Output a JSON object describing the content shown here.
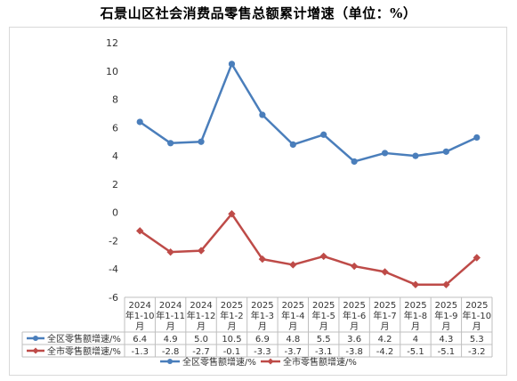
{
  "title": "石景山区社会消费品零售总额累计增速（单位：%）",
  "chart_data": {
    "type": "line",
    "categories": [
      [
        "2024",
        "年1-10",
        "月"
      ],
      [
        "2024",
        "年1-11",
        "月"
      ],
      [
        "2024",
        "年1-12",
        "月"
      ],
      [
        "2025",
        "年1-2",
        "月"
      ],
      [
        "2025",
        "年1-3",
        "月"
      ],
      [
        "2025",
        "年1-4",
        "月"
      ],
      [
        "2025",
        "年1-5",
        "月"
      ],
      [
        "2025",
        "年1-6",
        "月"
      ],
      [
        "2025",
        "年1-7",
        "月"
      ],
      [
        "2025",
        "年1-8",
        "月"
      ],
      [
        "2025",
        "年1-9",
        "月"
      ],
      [
        "2025",
        "年1-10",
        "月"
      ]
    ],
    "series": [
      {
        "name": "全区零售额增速/%",
        "color": "#4a7ebb",
        "marker": "circle",
        "values": [
          6.4,
          4.9,
          5.0,
          10.5,
          6.9,
          4.8,
          5.5,
          3.6,
          4.2,
          4,
          4.3,
          5.3
        ],
        "labels": [
          "6.4",
          "4.9",
          "5.0",
          "10.5",
          "6.9",
          "4.8",
          "5.5",
          "3.6",
          "4.2",
          "4",
          "4.3",
          "5.3"
        ]
      },
      {
        "name": "全市零售额增速/%",
        "color": "#be4b48",
        "marker": "diamond",
        "values": [
          -1.3,
          -2.8,
          -2.7,
          -0.1,
          -3.3,
          -3.7,
          -3.1,
          -3.8,
          -4.2,
          -5.1,
          -5.1,
          -3.2
        ],
        "labels": [
          "-1.3",
          "-2.8",
          "-2.7",
          "-0.1",
          "-3.3",
          "-3.7",
          "-3.1",
          "-3.8",
          "-4.2",
          "-5.1",
          "-5.1",
          "-3.2"
        ]
      }
    ],
    "ylim": [
      -6,
      12
    ],
    "yticks": [
      12,
      10,
      8,
      6,
      4,
      2,
      0,
      -2,
      -4,
      -6
    ],
    "grid": false,
    "legend": "bottom",
    "data_table": true
  }
}
